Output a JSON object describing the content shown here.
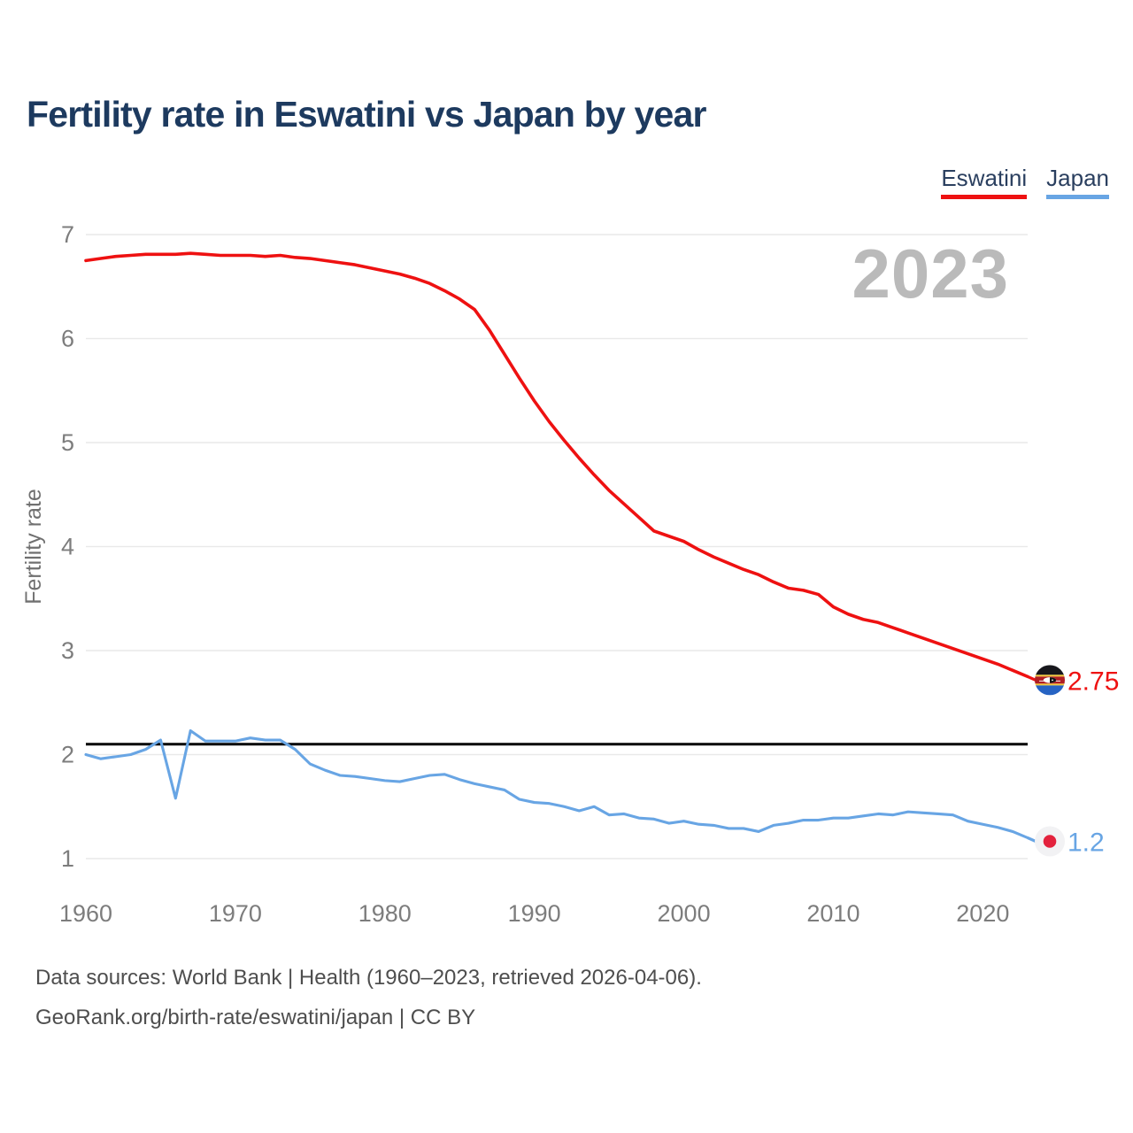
{
  "title": "Fertility rate in Eswatini vs Japan by year",
  "watermark_year": "2023",
  "legend": {
    "position": "top-right",
    "items": [
      {
        "label": "Eswatini",
        "color": "#ee1111"
      },
      {
        "label": "Japan",
        "color": "#68a5e4"
      }
    ]
  },
  "footer": {
    "line1": "Data sources: World Bank | Health (1960–2023, retrieved 2026-04-06).",
    "line2": "GeoRank.org/birth-rate/eswatini/japan | CC BY"
  },
  "chart_data": {
    "type": "line",
    "title": "Fertility rate in Eswatini vs Japan by year",
    "xlabel": "",
    "ylabel": "Fertility rate",
    "xlim": [
      1960,
      2023
    ],
    "ylim": [
      1,
      7
    ],
    "x_ticks": [
      1960,
      1970,
      1980,
      1990,
      2000,
      2010,
      2020
    ],
    "y_ticks": [
      1,
      2,
      3,
      4,
      5,
      6,
      7
    ],
    "grid": true,
    "legend_position": "top-right",
    "reference_line": {
      "value": 2.1,
      "color": "#000000"
    },
    "x": [
      1960,
      1961,
      1962,
      1963,
      1964,
      1965,
      1966,
      1967,
      1968,
      1969,
      1970,
      1971,
      1972,
      1973,
      1974,
      1975,
      1976,
      1977,
      1978,
      1979,
      1980,
      1981,
      1982,
      1983,
      1984,
      1985,
      1986,
      1987,
      1988,
      1989,
      1990,
      1991,
      1992,
      1993,
      1994,
      1995,
      1996,
      1997,
      1998,
      1999,
      2000,
      2001,
      2002,
      2003,
      2004,
      2005,
      2006,
      2007,
      2008,
      2009,
      2010,
      2011,
      2012,
      2013,
      2014,
      2015,
      2016,
      2017,
      2018,
      2019,
      2020,
      2021,
      2022,
      2023
    ],
    "series": [
      {
        "name": "Eswatini",
        "color": "#ee1111",
        "flag": "eswatini",
        "end_label": "2.75",
        "values": [
          6.75,
          6.77,
          6.79,
          6.8,
          6.81,
          6.81,
          6.81,
          6.82,
          6.81,
          6.8,
          6.8,
          6.8,
          6.79,
          6.8,
          6.78,
          6.77,
          6.75,
          6.73,
          6.71,
          6.68,
          6.65,
          6.62,
          6.58,
          6.53,
          6.46,
          6.38,
          6.28,
          6.08,
          5.85,
          5.62,
          5.4,
          5.2,
          5.02,
          4.85,
          4.69,
          4.54,
          4.41,
          4.28,
          4.15,
          4.1,
          4.05,
          3.97,
          3.9,
          3.84,
          3.78,
          3.73,
          3.66,
          3.6,
          3.58,
          3.54,
          3.42,
          3.35,
          3.3,
          3.27,
          3.22,
          3.17,
          3.12,
          3.07,
          3.02,
          2.97,
          2.92,
          2.87,
          2.81,
          2.75
        ]
      },
      {
        "name": "Japan",
        "color": "#68a5e4",
        "flag": "japan",
        "end_label": "1.2",
        "values": [
          2.0,
          1.96,
          1.98,
          2.0,
          2.05,
          2.14,
          1.58,
          2.23,
          2.13,
          2.13,
          2.13,
          2.16,
          2.14,
          2.14,
          2.05,
          1.91,
          1.85,
          1.8,
          1.79,
          1.77,
          1.75,
          1.74,
          1.77,
          1.8,
          1.81,
          1.76,
          1.72,
          1.69,
          1.66,
          1.57,
          1.54,
          1.53,
          1.5,
          1.46,
          1.5,
          1.42,
          1.43,
          1.39,
          1.38,
          1.34,
          1.36,
          1.33,
          1.32,
          1.29,
          1.29,
          1.26,
          1.32,
          1.34,
          1.37,
          1.37,
          1.39,
          1.39,
          1.41,
          1.43,
          1.42,
          1.45,
          1.44,
          1.43,
          1.42,
          1.36,
          1.33,
          1.3,
          1.26,
          1.2
        ]
      }
    ]
  }
}
